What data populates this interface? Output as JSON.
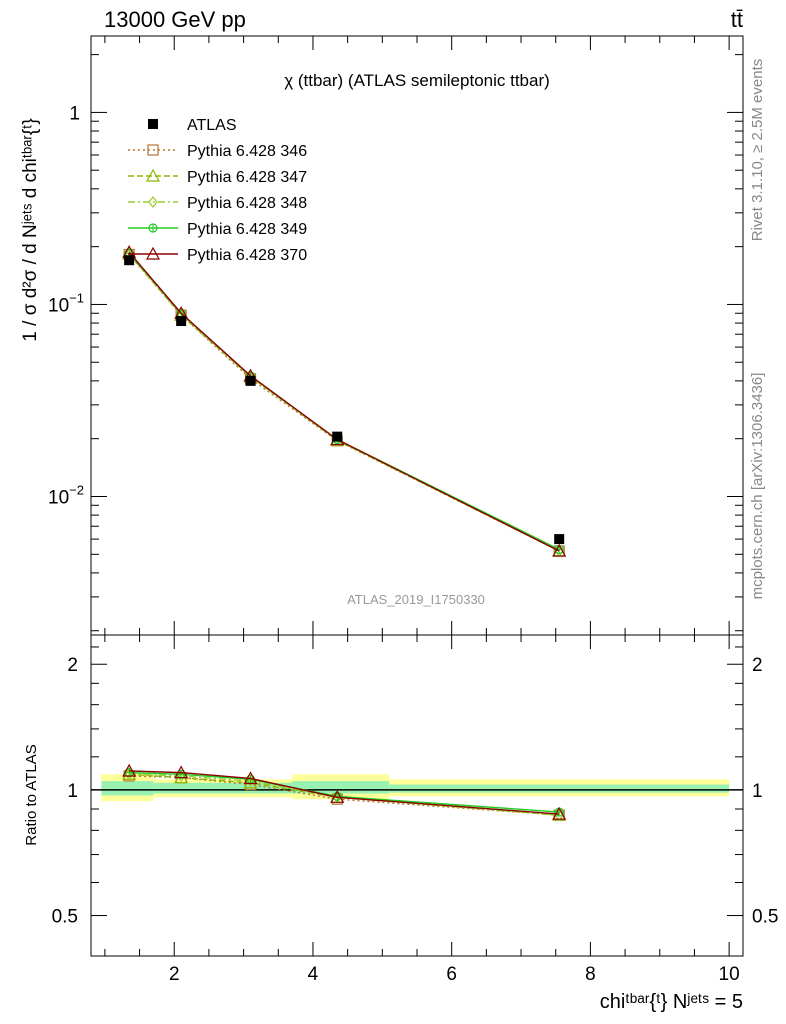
{
  "header": {
    "left": "13000 GeV pp",
    "right": "tt̄"
  },
  "side_labels": {
    "rivet": "Rivet 3.1.10, ≥ 2.5M events",
    "mcplots": "mcplots.cern.ch [arXiv:1306.3436]"
  },
  "chart_data": [
    {
      "type": "line",
      "panel": "main",
      "title": "χ (ttbar) (ATLAS semileptonic ttbar)",
      "ylabel": "1 / σ d²σ / d Nʲᵉᵗˢ d chiᵗᵇᵃʳ{ᵗ}",
      "watermark": "ATLAS_2019_I1750330",
      "yscale": "log",
      "xlim": [
        0.8,
        10.2
      ],
      "ylim": [
        0.0019,
        2.5
      ],
      "yticks": [
        {
          "value": 1,
          "base": "1",
          "exp": ""
        },
        {
          "value": 0.1,
          "base": "10",
          "exp": "−1"
        },
        {
          "value": 0.01,
          "base": "10",
          "exp": "−2"
        }
      ],
      "legend_position": "top-left",
      "data": {
        "name": "ATLAS",
        "x": [
          1.35,
          2.1,
          3.1,
          4.35,
          7.55
        ],
        "y": [
          0.17,
          0.082,
          0.04,
          0.0205,
          0.006
        ]
      },
      "series": [
        {
          "name": "Pythia 6.428 346",
          "color": "#b87333",
          "marker": "square-open",
          "dash": "2,3",
          "x": [
            1.35,
            2.1,
            3.1,
            4.35,
            7.55
          ],
          "y": [
            0.182,
            0.088,
            0.041,
            0.0195,
            0.0052
          ]
        },
        {
          "name": "Pythia 6.428 347",
          "color": "#8db600",
          "marker": "triangle-open",
          "dash": "6,3",
          "x": [
            1.35,
            2.1,
            3.1,
            4.35,
            7.55
          ],
          "y": [
            0.183,
            0.088,
            0.042,
            0.0196,
            0.0052
          ]
        },
        {
          "name": "Pythia 6.428 348",
          "color": "#9acd32",
          "marker": "diamond-open",
          "dash": "7,3,2,3",
          "x": [
            1.35,
            2.1,
            3.1,
            4.35,
            7.55
          ],
          "y": [
            0.184,
            0.089,
            0.0422,
            0.0197,
            0.0052
          ]
        },
        {
          "name": "Pythia 6.428 349",
          "color": "#22cc22",
          "marker": "circle-cross",
          "dash": "",
          "x": [
            1.35,
            2.1,
            3.1,
            4.35,
            7.55
          ],
          "y": [
            0.185,
            0.09,
            0.0424,
            0.0198,
            0.0053
          ]
        },
        {
          "name": "Pythia 6.428 370",
          "color": "#8b0000",
          "marker": "triangle-open",
          "dash": "",
          "x": [
            1.35,
            2.1,
            3.1,
            4.35,
            7.55
          ],
          "y": [
            0.187,
            0.09,
            0.0425,
            0.0198,
            0.0052
          ]
        }
      ]
    },
    {
      "type": "line",
      "panel": "ratio",
      "ylabel": "Ratio to ATLAS",
      "xlabel": "chiᵗᵇᵃʳ{ᵗ} Nʲᵉᵗˢ = 5",
      "xlim": [
        0.8,
        10.2
      ],
      "ylim": [
        0.4,
        2.35
      ],
      "yticks": [
        0.5,
        1,
        2
      ],
      "xticks": [
        2,
        4,
        6,
        8,
        10
      ],
      "bands": [
        {
          "x": [
            0.95,
            1.7
          ],
          "inner": [
            0.97,
            1.05
          ],
          "outer": [
            0.94,
            1.09
          ]
        },
        {
          "x": [
            1.7,
            3.7
          ],
          "inner": [
            0.98,
            1.04
          ],
          "outer": [
            0.96,
            1.06
          ]
        },
        {
          "x": [
            3.7,
            5.1
          ],
          "inner": [
            0.98,
            1.05
          ],
          "outer": [
            0.95,
            1.09
          ]
        },
        {
          "x": [
            5.1,
            10.0
          ],
          "inner": [
            0.985,
            1.03
          ],
          "outer": [
            0.965,
            1.06
          ]
        }
      ],
      "series": [
        {
          "name": "Pythia 6.428 346",
          "x": [
            1.35,
            2.1,
            3.1,
            4.35,
            7.55
          ],
          "y": [
            1.08,
            1.07,
            1.03,
            0.95,
            0.87
          ]
        },
        {
          "name": "Pythia 6.428 347",
          "x": [
            1.35,
            2.1,
            3.1,
            4.35,
            7.55
          ],
          "y": [
            1.09,
            1.07,
            1.04,
            0.96,
            0.87
          ]
        },
        {
          "name": "Pythia 6.428 348",
          "x": [
            1.35,
            2.1,
            3.1,
            4.35,
            7.55
          ],
          "y": [
            1.09,
            1.08,
            1.05,
            0.96,
            0.87
          ]
        },
        {
          "name": "Pythia 6.428 349",
          "x": [
            1.35,
            2.1,
            3.1,
            4.35,
            7.55
          ],
          "y": [
            1.1,
            1.09,
            1.06,
            0.965,
            0.885
          ]
        },
        {
          "name": "Pythia 6.428 370",
          "x": [
            1.35,
            2.1,
            3.1,
            4.35,
            7.55
          ],
          "y": [
            1.11,
            1.1,
            1.065,
            0.96,
            0.875
          ]
        }
      ]
    }
  ]
}
